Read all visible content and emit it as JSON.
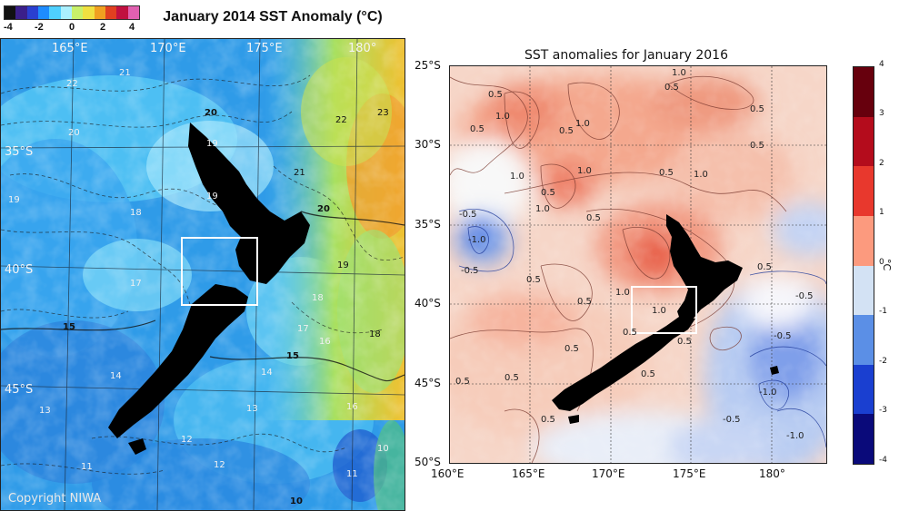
{
  "left_map": {
    "title": "January 2014 SST Anomaly (°C)",
    "colorbar": {
      "ticks": [
        "-4",
        "-2",
        "0",
        "2",
        "4"
      ],
      "colors": [
        "#111111",
        "#3b1f8a",
        "#2a3fd0",
        "#1e8cff",
        "#4fd0ff",
        "#aaf0ff",
        "#c8f06a",
        "#f0e040",
        "#f0a020",
        "#e04020",
        "#c01040",
        "#e060b0"
      ]
    },
    "lon_labels": [
      "165°E",
      "170°E",
      "175°E",
      "180°"
    ],
    "lat_labels": [
      "35°S",
      "40°S",
      "45°S"
    ],
    "contour_labels": [
      "21",
      "22",
      "20",
      "20",
      "19",
      "21",
      "22",
      "23",
      "20",
      "19",
      "19",
      "18",
      "19",
      "18",
      "17",
      "16",
      "15",
      "15",
      "18",
      "17",
      "14",
      "13",
      "12",
      "11",
      "10",
      "14",
      "16",
      "13",
      "12",
      "11",
      "10"
    ],
    "copyright": "Copyright NIWA"
  },
  "right_map": {
    "title": "SST anomalies for January 2016",
    "lon_labels": [
      "160°E",
      "165°E",
      "170°E",
      "175°E",
      "180°"
    ],
    "lat_labels": [
      "25°S",
      "30°S",
      "35°S",
      "40°S",
      "45°S",
      "50°S"
    ],
    "colorbar": {
      "ticks": [
        "4",
        "3",
        "2",
        "1",
        "0",
        "-1",
        "-2",
        "-3",
        "-4"
      ],
      "colors": [
        "#67000d",
        "#b40c1c",
        "#e8382d",
        "#fc9a7e",
        "#fde0d2",
        "#d3e2f4",
        "#5b8fe6",
        "#1a3fd0",
        "#0a0a7a",
        "#14094a"
      ],
      "unit": "°C"
    },
    "contour_labels": [
      "0.5",
      "1.0",
      "0.5",
      "1.0",
      "0.5",
      "1.0",
      "0.5",
      "0.5",
      "0.5",
      "1.0",
      "0.5",
      "1.0",
      "1.0",
      "1.0",
      "0.5",
      "-0.5",
      "-1.0",
      "-0.5",
      "0.5",
      "0.5",
      "0.5",
      "1.0",
      "1.0",
      "0.5",
      "0.5",
      "0.5",
      "0.5",
      "0.5",
      "-0.5",
      "-0.5",
      "-1.0",
      "-1.0",
      "-0.5",
      "0.5",
      "0.5",
      "0.5"
    ]
  }
}
